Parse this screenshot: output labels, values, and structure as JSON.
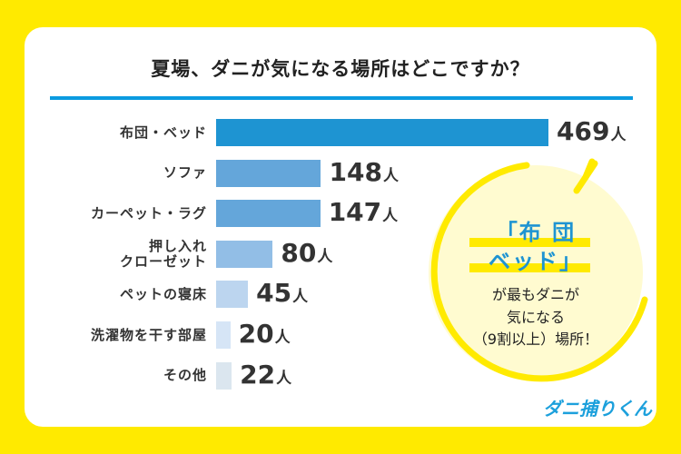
{
  "chart_data": {
    "type": "bar",
    "orientation": "horizontal",
    "title": "夏場、ダニが気になる場所はどこですか？",
    "unit": "人",
    "categories": [
      "布団・ベッド",
      "ソファ",
      "カーペット・ラグ",
      "押し入れ\nクローゼット",
      "ペットの寝床",
      "洗濯物を干す部屋",
      "その他"
    ],
    "values": [
      469,
      148,
      147,
      80,
      45,
      20,
      22
    ],
    "colors": [
      "#1e94d2",
      "#64a6da",
      "#64a6da",
      "#92bee6",
      "#bcd5ef",
      "#d6e5f6",
      "#dbe6ef"
    ],
    "grid": false
  },
  "callout": {
    "line1": "「布 団",
    "line2": "ベッド」",
    "line3": "が最もダニが",
    "line4": "気になる",
    "line5": "（9割以上）場所！"
  },
  "logo": "ダニ捕りくん",
  "colors": {
    "background": "#ffea00",
    "accent": "#0b9be0",
    "bubble": "#fffbd0"
  }
}
